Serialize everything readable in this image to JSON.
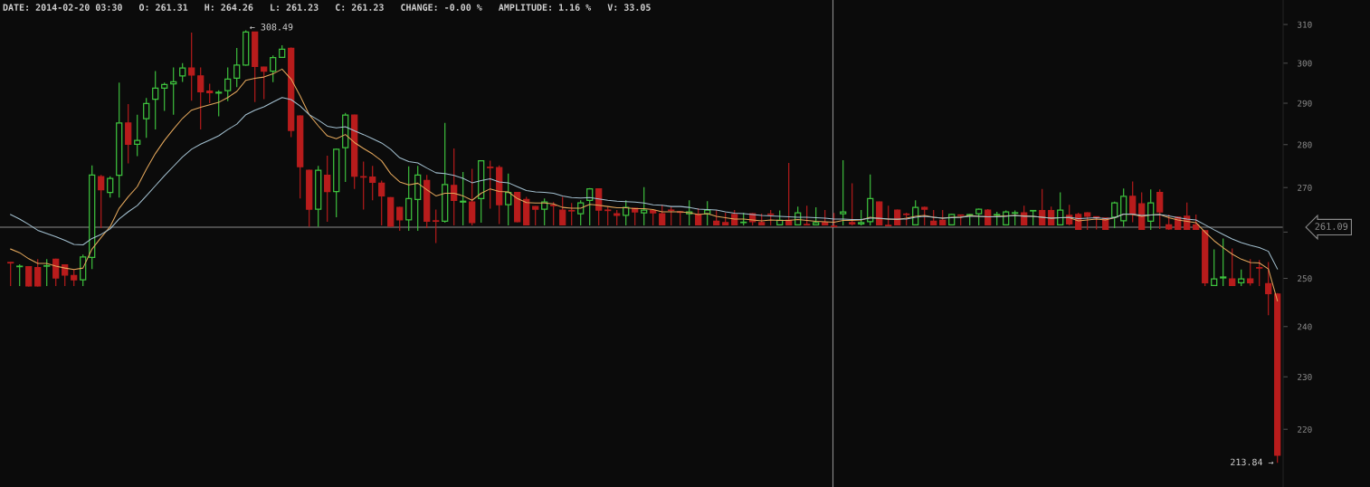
{
  "chart_data": {
    "type": "candlestick",
    "title": "DATE: 2014-02-20 03:30   O: 261.31   H: 264.26   L: 261.23   C: 261.23   CHANGE: -0.00 %   AMPLITUDE: 1.16 %   V: 33.05",
    "categories": [
      null,
      null,
      null,
      null,
      null,
      null,
      null,
      null,
      null,
      null,
      null,
      null,
      null,
      null,
      null,
      null,
      null,
      null,
      null,
      null,
      null,
      null,
      null,
      null,
      null,
      null,
      null,
      null,
      null,
      null,
      null,
      null,
      null,
      null,
      null,
      null,
      null,
      null,
      null,
      null,
      null,
      null,
      null,
      null,
      null,
      null,
      null,
      null,
      null,
      null,
      null,
      null,
      null,
      null,
      null,
      null,
      null,
      null,
      null,
      null,
      null,
      null,
      null,
      null,
      null,
      null,
      null,
      null,
      null,
      null,
      null,
      null,
      null,
      null,
      null,
      null,
      null,
      null,
      null,
      null,
      null,
      null,
      null,
      null,
      null,
      null,
      null,
      null,
      null,
      null,
      null,
      null,
      null,
      null,
      null,
      null,
      null,
      null,
      null,
      null,
      null,
      null,
      null,
      null,
      null,
      null,
      null,
      null,
      null,
      null,
      null,
      null,
      null,
      null,
      null,
      null,
      null,
      null,
      null,
      null,
      null,
      null,
      null,
      null,
      null,
      null,
      null,
      null,
      null,
      null,
      null,
      null,
      null,
      null,
      null,
      null,
      null,
      null,
      null,
      null,
      null
    ],
    "ohlc": [
      [
        253.4,
        253.5,
        248.4,
        253.3
      ],
      [
        252.5,
        253.0,
        248.4,
        252.6
      ],
      [
        252.5,
        252.6,
        248.3,
        248.4
      ],
      [
        252.3,
        254.1,
        248.3,
        248.4
      ],
      [
        252.6,
        254.1,
        248.4,
        252.7
      ],
      [
        254.1,
        254.2,
        248.4,
        250.1
      ],
      [
        252.9,
        253.0,
        248.4,
        250.7
      ],
      [
        250.6,
        251.9,
        248.4,
        249.7
      ],
      [
        249.7,
        255.1,
        248.4,
        254.6
      ],
      [
        254.5,
        275.1,
        252.0,
        272.9
      ],
      [
        272.5,
        272.9,
        260.9,
        269.5
      ],
      [
        268.9,
        272.6,
        267.7,
        272.1
      ],
      [
        272.8,
        295.1,
        267.7,
        285.2
      ],
      [
        285.2,
        289.8,
        275.6,
        280.1
      ],
      [
        280.1,
        287.2,
        277.3,
        281.0
      ],
      [
        286.2,
        291.3,
        281.6,
        289.9
      ],
      [
        291.0,
        298.0,
        283.6,
        293.7
      ],
      [
        293.7,
        295.1,
        288.1,
        294.6
      ],
      [
        294.8,
        298.9,
        287.2,
        295.3
      ],
      [
        296.8,
        300.0,
        295.3,
        298.8
      ],
      [
        298.8,
        307.9,
        290.6,
        297.0
      ],
      [
        296.8,
        298.9,
        283.6,
        292.8
      ],
      [
        293.0,
        294.8,
        290.0,
        292.6
      ],
      [
        292.5,
        293.2,
        286.8,
        292.7
      ],
      [
        293.1,
        298.9,
        290.5,
        296.0
      ],
      [
        296.2,
        303.9,
        294.0,
        299.5
      ],
      [
        299.5,
        308.49,
        299.4,
        308.0
      ],
      [
        308.0,
        308.1,
        290.3,
        299.2
      ],
      [
        299.0,
        299.1,
        291.0,
        298.0
      ],
      [
        298.0,
        302.0,
        295.2,
        301.4
      ],
      [
        301.5,
        304.6,
        301.4,
        303.6
      ],
      [
        303.8,
        304.0,
        281.8,
        283.4
      ],
      [
        286.9,
        287.0,
        267.5,
        274.8
      ],
      [
        274.0,
        274.1,
        261.2,
        265.1
      ],
      [
        265.1,
        275.0,
        261.2,
        274.0
      ],
      [
        272.8,
        277.4,
        262.3,
        269.1
      ],
      [
        269.1,
        279.1,
        263.3,
        278.9
      ],
      [
        279.3,
        287.6,
        271.3,
        287.1
      ],
      [
        287.1,
        287.2,
        269.7,
        272.6
      ],
      [
        272.5,
        276.0,
        265.0,
        272.4
      ],
      [
        272.4,
        275.0,
        267.1,
        271.2
      ],
      [
        271.0,
        271.6,
        261.5,
        268.1
      ],
      [
        267.7,
        267.8,
        261.2,
        261.3
      ],
      [
        265.5,
        265.6,
        260.3,
        262.7
      ],
      [
        262.7,
        274.9,
        260.3,
        267.5
      ],
      [
        267.3,
        275.0,
        260.3,
        272.9
      ],
      [
        271.6,
        272.9,
        260.9,
        262.4
      ],
      [
        262.5,
        265.0,
        257.6,
        262.4
      ],
      [
        262.4,
        285.2,
        262.1,
        270.7
      ],
      [
        270.5,
        279.1,
        261.5,
        267.1
      ],
      [
        266.7,
        273.6,
        261.5,
        266.9
      ],
      [
        266.7,
        274.3,
        261.5,
        262.1
      ],
      [
        267.5,
        276.3,
        262.1,
        276.2
      ],
      [
        274.7,
        276.2,
        265.2,
        274.6
      ],
      [
        274.6,
        275.1,
        261.8,
        266.1
      ],
      [
        266.1,
        273.2,
        261.5,
        268.9
      ],
      [
        268.9,
        269.0,
        262.2,
        262.3
      ],
      [
        267.3,
        267.9,
        261.5,
        261.6
      ],
      [
        265.7,
        265.8,
        261.5,
        265.1
      ],
      [
        265.1,
        267.5,
        261.5,
        266.7
      ],
      [
        266.0,
        266.7,
        261.5,
        265.9
      ],
      [
        264.9,
        267.9,
        261.5,
        261.6
      ],
      [
        264.8,
        266.5,
        261.5,
        264.7
      ],
      [
        264.1,
        267.1,
        261.5,
        266.5
      ],
      [
        267.1,
        269.9,
        261.5,
        269.7
      ],
      [
        269.7,
        269.8,
        261.5,
        264.9
      ],
      [
        264.9,
        265.7,
        261.5,
        264.8
      ],
      [
        264.1,
        264.9,
        261.5,
        263.7
      ],
      [
        263.7,
        267.1,
        261.5,
        265.5
      ],
      [
        265.3,
        265.4,
        261.5,
        264.5
      ],
      [
        264.3,
        270.1,
        261.5,
        264.9
      ],
      [
        264.8,
        264.9,
        261.5,
        264.3
      ],
      [
        264.1,
        266.1,
        261.5,
        261.6
      ],
      [
        264.9,
        265.7,
        261.5,
        264.8
      ],
      [
        264.5,
        264.6,
        261.5,
        264.4
      ],
      [
        264.1,
        267.1,
        261.5,
        264.5
      ],
      [
        263.9,
        265.3,
        261.5,
        261.6
      ],
      [
        264.1,
        266.9,
        261.5,
        264.9
      ],
      [
        262.4,
        264.9,
        261.5,
        261.6
      ],
      [
        262.1,
        264.3,
        261.5,
        261.6
      ],
      [
        263.9,
        264.9,
        261.5,
        261.6
      ],
      [
        262.1,
        264.3,
        261.5,
        262.2
      ],
      [
        264.1,
        264.2,
        261.5,
        262.3
      ],
      [
        262.1,
        264.1,
        261.5,
        261.6
      ],
      [
        264.0,
        264.9,
        261.5,
        263.9
      ],
      [
        261.6,
        264.8,
        261.5,
        262.6
      ],
      [
        262.6,
        275.7,
        261.5,
        261.6
      ],
      [
        261.6,
        265.7,
        261.5,
        264.3
      ],
      [
        261.7,
        265.9,
        261.5,
        261.6
      ],
      [
        261.6,
        265.5,
        261.5,
        262.1
      ],
      [
        262.1,
        264.9,
        261.5,
        261.6
      ],
      [
        261.31,
        264.26,
        261.23,
        261.23
      ],
      [
        264.1,
        276.3,
        261.5,
        264.5
      ],
      [
        262.1,
        271.0,
        261.5,
        261.8
      ],
      [
        261.8,
        264.9,
        261.5,
        262.1
      ],
      [
        262.3,
        273.0,
        261.5,
        267.5
      ],
      [
        266.7,
        266.8,
        261.5,
        261.6
      ],
      [
        261.5,
        265.9,
        261.3,
        261.4
      ],
      [
        264.9,
        265.0,
        261.5,
        261.6
      ],
      [
        264.0,
        264.3,
        261.5,
        263.9
      ],
      [
        261.6,
        267.1,
        261.5,
        265.5
      ],
      [
        265.5,
        265.7,
        261.5,
        265.1
      ],
      [
        262.4,
        264.9,
        261.5,
        261.6
      ],
      [
        262.6,
        264.9,
        261.5,
        261.6
      ],
      [
        261.6,
        264.0,
        261.5,
        263.9
      ],
      [
        263.8,
        263.9,
        261.5,
        263.7
      ],
      [
        263.8,
        264.0,
        261.5,
        263.9
      ],
      [
        264.1,
        265.2,
        261.5,
        265.1
      ],
      [
        264.9,
        265.1,
        261.5,
        261.6
      ],
      [
        263.8,
        264.5,
        261.5,
        263.9
      ],
      [
        261.6,
        264.8,
        261.5,
        264.5
      ],
      [
        264.2,
        264.8,
        261.5,
        264.3
      ],
      [
        264.3,
        265.9,
        261.5,
        261.6
      ],
      [
        264.7,
        264.9,
        261.5,
        264.8
      ],
      [
        264.8,
        269.7,
        261.5,
        261.6
      ],
      [
        264.8,
        265.7,
        261.5,
        261.6
      ],
      [
        261.6,
        268.9,
        261.5,
        264.9
      ],
      [
        263.7,
        266.1,
        261.5,
        261.8
      ],
      [
        263.9,
        264.3,
        260.5,
        260.6
      ],
      [
        264.3,
        264.4,
        260.5,
        263.5
      ],
      [
        263.4,
        263.5,
        260.6,
        263.2
      ],
      [
        263.1,
        263.2,
        260.5,
        260.6
      ],
      [
        263.3,
        266.8,
        260.9,
        266.5
      ],
      [
        262.5,
        269.8,
        261.2,
        268.0
      ],
      [
        268.0,
        271.4,
        262.2,
        264.0
      ],
      [
        266.3,
        268.9,
        260.5,
        260.6
      ],
      [
        262.4,
        269.6,
        260.5,
        266.5
      ],
      [
        268.9,
        269.6,
        260.7,
        264.5
      ],
      [
        261.6,
        263.9,
        260.5,
        260.7
      ],
      [
        263.3,
        263.5,
        260.5,
        260.6
      ],
      [
        263.5,
        266.6,
        260.5,
        260.6
      ],
      [
        261.6,
        263.9,
        260.5,
        260.6
      ],
      [
        260.3,
        260.5,
        248.4,
        249.1
      ],
      [
        248.5,
        256.2,
        248.4,
        249.9
      ],
      [
        250.1,
        258.6,
        248.4,
        250.3
      ],
      [
        249.9,
        256.4,
        248.4,
        248.5
      ],
      [
        249.1,
        251.9,
        248.4,
        249.9
      ],
      [
        249.9,
        254.1,
        248.5,
        249.1
      ],
      [
        252.3,
        253.9,
        248.4,
        252.2
      ],
      [
        248.9,
        253.5,
        242.3,
        246.8
      ],
      [
        246.7,
        246.9,
        213.84,
        215.2
      ]
    ],
    "colors": [
      "#b81c1c",
      "#3ec23e",
      "#b81c1c",
      "#b81c1c",
      "#3ec23e",
      "#b81c1c",
      "#b81c1c",
      "#b81c1c",
      "#3ec23e",
      "#3ec23e",
      "#b81c1c",
      "#3ec23e",
      "#3ec23e",
      "#b81c1c",
      "#3ec23e",
      "#3ec23e",
      "#3ec23e",
      "#3ec23e",
      "#3ec23e",
      "#3ec23e",
      "#b81c1c",
      "#b81c1c",
      "#b81c1c",
      "#3ec23e",
      "#3ec23e",
      "#3ec23e",
      "#3ec23e",
      "#b81c1c",
      "#b81c1c",
      "#3ec23e",
      "#3ec23e",
      "#b81c1c",
      "#b81c1c",
      "#b81c1c",
      "#3ec23e",
      "#b81c1c",
      "#3ec23e",
      "#3ec23e",
      "#b81c1c",
      "#b81c1c",
      "#b81c1c",
      "#b81c1c",
      "#b81c1c",
      "#b81c1c",
      "#3ec23e",
      "#3ec23e",
      "#b81c1c",
      "#b81c1c",
      "#3ec23e",
      "#b81c1c",
      "#3ec23e",
      "#b81c1c",
      "#3ec23e",
      "#b81c1c",
      "#b81c1c",
      "#3ec23e",
      "#b81c1c",
      "#b81c1c",
      "#b81c1c",
      "#3ec23e",
      "#b81c1c",
      "#b81c1c",
      "#b81c1c",
      "#3ec23e",
      "#3ec23e",
      "#b81c1c",
      "#b81c1c",
      "#b81c1c",
      "#3ec23e",
      "#b81c1c",
      "#3ec23e",
      "#b81c1c",
      "#b81c1c",
      "#b81c1c",
      "#b81c1c",
      "#3ec23e",
      "#b81c1c",
      "#3ec23e",
      "#b81c1c",
      "#b81c1c",
      "#b81c1c",
      "#3ec23e",
      "#b81c1c",
      "#b81c1c",
      "#b81c1c",
      "#3ec23e",
      "#b81c1c",
      "#3ec23e",
      "#b81c1c",
      "#3ec23e",
      "#b81c1c",
      "#b81c1c",
      "#3ec23e",
      "#b81c1c",
      "#3ec23e",
      "#3ec23e",
      "#b81c1c",
      "#b81c1c",
      "#b81c1c",
      "#b81c1c",
      "#3ec23e",
      "#b81c1c",
      "#b81c1c",
      "#b81c1c",
      "#3ec23e",
      "#b81c1c",
      "#3ec23e",
      "#3ec23e",
      "#b81c1c",
      "#3ec23e",
      "#3ec23e",
      "#3ec23e",
      "#b81c1c",
      "#3ec23e",
      "#b81c1c",
      "#b81c1c",
      "#3ec23e",
      "#b81c1c",
      "#b81c1c",
      "#b81c1c",
      "#b81c1c",
      "#b81c1c",
      "#3ec23e",
      "#3ec23e",
      "#b81c1c",
      "#b81c1c",
      "#3ec23e",
      "#b81c1c",
      "#b81c1c",
      "#b81c1c",
      "#b81c1c",
      "#b81c1c",
      "#b81c1c",
      "#3ec23e",
      "#3ec23e",
      "#b81c1c",
      "#3ec23e",
      "#b81c1c",
      "#b81c1c",
      "#b81c1c",
      "#b81c1c"
    ],
    "series": [
      {
        "type": "line",
        "color": "#e3a75c",
        "values": [
          256.3,
          255.5,
          254.2,
          253.2,
          253.2,
          252.6,
          252.2,
          251.9,
          252.2,
          256.3,
          258.8,
          261.2,
          265.3,
          267.9,
          270.2,
          274.2,
          277.9,
          281.0,
          283.7,
          286.3,
          288.3,
          289.0,
          289.6,
          290.2,
          291.4,
          292.9,
          295.7,
          296.2,
          296.5,
          297.3,
          298.5,
          296.0,
          291.8,
          287.2,
          284.5,
          282.1,
          281.4,
          282.4,
          280.5,
          279.1,
          277.8,
          276.2,
          273.2,
          271.3,
          270.6,
          271.0,
          269.5,
          268.1,
          268.7,
          268.7,
          268.1,
          267.1,
          268.7,
          269.7,
          269.1,
          269.0,
          267.5,
          266.6,
          266.5,
          266.5,
          266.3,
          265.5,
          265.3,
          265.3,
          266.2,
          266.0,
          265.7,
          265.4,
          265.4,
          265.2,
          265.2,
          265.0,
          264.5,
          264.5,
          264.5,
          264.3,
          263.9,
          264.1,
          263.5,
          263.2,
          262.9,
          262.9,
          262.7,
          262.5,
          262.7,
          262.6,
          262.6,
          262.8,
          262.6,
          262.4,
          262.3,
          262.2,
          262.6,
          262.6,
          262.7,
          263.3,
          263.0,
          262.9,
          262.8,
          263.1,
          263.5,
          263.7,
          263.3,
          263.1,
          263.3,
          263.3,
          263.7,
          263.5,
          263.4,
          263.5,
          263.6,
          263.7,
          263.6,
          263.5,
          263.3,
          263.1,
          263.2,
          263.2,
          262.5,
          262.7,
          262.9,
          262.7,
          263.2,
          264.0,
          263.9,
          263.5,
          263.8,
          263.9,
          263.2,
          262.7,
          262.4,
          262.1,
          260.0,
          258.1,
          256.6,
          255.2,
          254.1,
          253.4,
          253.3,
          252.0,
          245.3
        ]
      },
      {
        "type": "line",
        "color": "#a3c0d0",
        "values": [
          263.9,
          262.9,
          261.7,
          260.4,
          259.7,
          259.0,
          258.2,
          257.3,
          257.2,
          258.6,
          259.5,
          260.7,
          262.9,
          264.5,
          265.9,
          268.1,
          270.4,
          272.7,
          274.9,
          277.1,
          278.9,
          280.1,
          281.1,
          282.1,
          283.6,
          284.9,
          287.2,
          288.3,
          289.1,
          290.3,
          291.4,
          290.9,
          289.3,
          287.2,
          285.9,
          284.4,
          284.0,
          284.3,
          283.3,
          282.4,
          281.4,
          280.4,
          278.9,
          276.9,
          276.0,
          275.7,
          274.5,
          273.4,
          273.2,
          272.8,
          272.1,
          271.1,
          271.6,
          272.0,
          271.3,
          271.1,
          270.2,
          269.3,
          269.0,
          268.9,
          268.7,
          268.1,
          267.7,
          267.6,
          267.7,
          267.4,
          267.1,
          266.9,
          266.8,
          266.7,
          266.5,
          266.1,
          266.0,
          265.7,
          265.7,
          265.5,
          265.1,
          265.0,
          264.9,
          264.5,
          264.2,
          264.1,
          263.9,
          263.7,
          263.6,
          263.5,
          263.4,
          263.3,
          263.3,
          263.2,
          263.1,
          262.9,
          262.9,
          262.8,
          262.8,
          263.1,
          263.1,
          262.9,
          262.9,
          262.9,
          263.3,
          263.5,
          263.3,
          263.1,
          263.2,
          263.3,
          263.5,
          263.5,
          263.4,
          263.4,
          263.5,
          263.7,
          263.5,
          263.5,
          263.3,
          263.1,
          263.2,
          263.3,
          263.0,
          263.1,
          263.2,
          263.0,
          263.2,
          264.0,
          264.0,
          263.7,
          263.8,
          263.9,
          263.6,
          263.2,
          262.9,
          262.7,
          261.6,
          260.5,
          259.5,
          258.5,
          257.7,
          257.1,
          256.6,
          255.8,
          252.0
        ]
      }
    ],
    "log": true,
    "ylim": [
      209.5,
      316.5
    ],
    "yticks": [
      220,
      230,
      240,
      250,
      {
        "value": 260,
        "label": null
      },
      270,
      280,
      290,
      300,
      310
    ],
    "tick_labels": "y",
    "ref_lines": [
      {
        "axis": "y",
        "value": 261.09,
        "label": "261.09",
        "color": "#8c8c8c"
      }
    ],
    "annotations": [
      "← 308.49",
      "213.84 →"
    ]
  }
}
